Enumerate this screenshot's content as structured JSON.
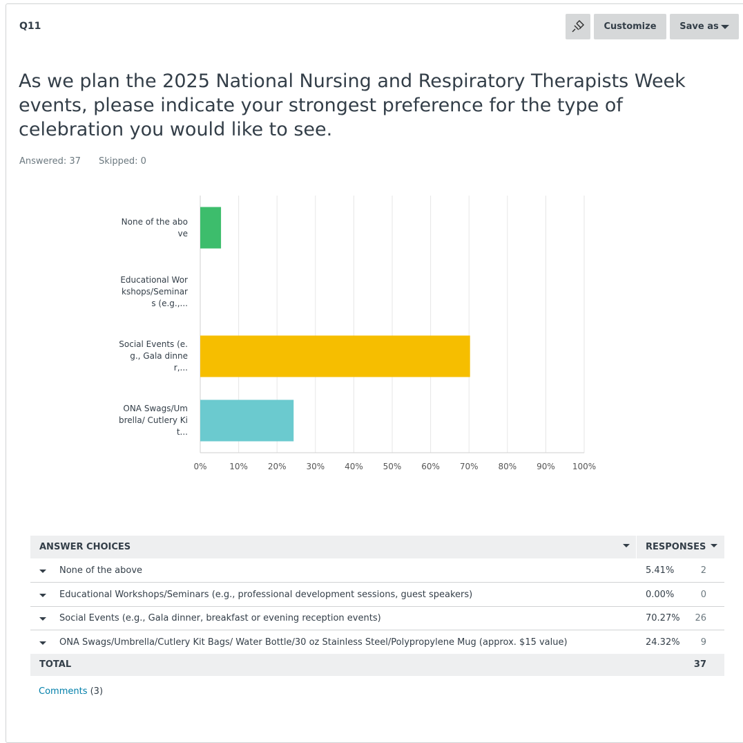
{
  "header": {
    "question_id": "Q11",
    "buttons": [
      "Customize",
      "Save as"
    ]
  },
  "question": "As we plan the 2025 National Nursing and Respiratory Therapists Week events, please indicate your strongest preference for the type of celebration you would like to see.",
  "stats": [
    "Answered: 37",
    "Skipped: 0"
  ],
  "chart_data": {
    "type": "bar",
    "orientation": "horizontal",
    "categories": [
      "None of the above",
      "Educational Workshops/Seminars (e.g.,...",
      "Social Events (e.g., Gala dinner,...",
      "ONA Swags/Umbrella/ Cutlery Kit..."
    ],
    "values": [
      5.41,
      0,
      70.27,
      24.32
    ],
    "colors": [
      "#3dbd6c",
      "#a1d6e2",
      "#f6be00",
      "#6bcacf"
    ],
    "xlim": [
      0,
      100
    ],
    "xticks": [
      {
        "value": 0,
        "label": "0%"
      },
      {
        "value": 10,
        "label": "10%"
      },
      {
        "value": 20,
        "label": "20%"
      },
      {
        "value": 30,
        "label": "30%"
      },
      {
        "value": 40,
        "label": "40%"
      },
      {
        "value": 50,
        "label": "50%"
      },
      {
        "value": 60,
        "label": "60%"
      },
      {
        "value": 70,
        "label": "70%"
      },
      {
        "value": 80,
        "label": "80%"
      },
      {
        "value": 90,
        "label": "90%"
      },
      {
        "value": 100,
        "label": "100%"
      }
    ],
    "grid": true
  },
  "table": {
    "headers": [
      "ANSWER CHOICES",
      "RESPONSES"
    ],
    "rows": [
      [
        "None of the above",
        "5.41%",
        2
      ],
      [
        "Educational Workshops/Seminars (e.g., professional development sessions, guest speakers)",
        "0.00%",
        0
      ],
      [
        "Social Events (e.g., Gala dinner, breakfast or evening reception events)",
        "70.27%",
        26
      ],
      [
        "ONA Swags/Umbrella/Cutlery Kit Bags/ Water Bottle/30 oz Stainless Steel/Polypropylene Mug (approx. $15 value)",
        "24.32%",
        9
      ]
    ],
    "total": [
      "TOTAL",
      37
    ]
  },
  "comments": {
    "label": "Comments",
    "count": "(3)"
  }
}
